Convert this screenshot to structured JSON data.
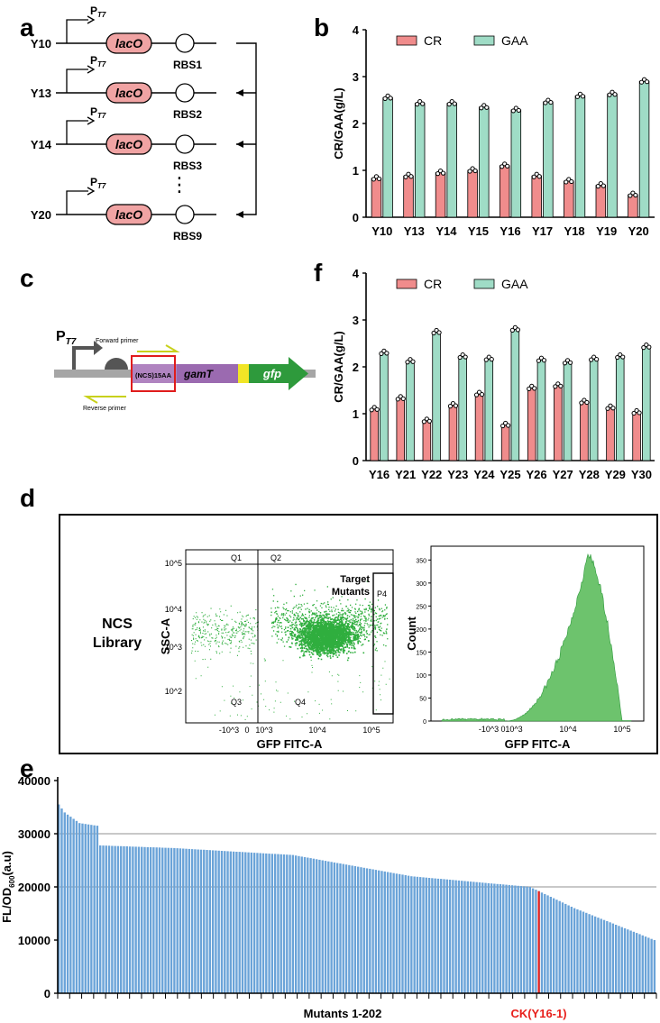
{
  "panels": {
    "a": {
      "letter": "a",
      "promoter": "P",
      "promoter_sub": "T7",
      "operator": "lacO",
      "strains": [
        "Y10",
        "Y13",
        "Y14",
        "Y20"
      ],
      "rbs": [
        "RBS1",
        "RBS2",
        "RBS3",
        "RBS9"
      ],
      "ellipsis": "⋮"
    },
    "c": {
      "letter": "c",
      "promoter": "P",
      "promoter_sub": "T7",
      "forward_primer": "Forward primer",
      "reverse_primer": "Reverse primer",
      "tag": "(NCS)15AA",
      "gene1": "gamT",
      "gene2": "gfp"
    },
    "d": {
      "letter": "d",
      "library_line1": "NCS",
      "library_line2": "Library",
      "scatter": {
        "quadrants": [
          "Q1",
          "Q2",
          "Q3",
          "Q4"
        ],
        "gate": "P4",
        "target_line1": "Target",
        "target_line2": "Mutants",
        "xlabel": "GFP FITC-A",
        "ylabel": "SSC-A",
        "yticks": [
          "10^5",
          "10^4",
          "10^3",
          "10^2"
        ],
        "xticks": [
          "-10^3",
          "0",
          "10^3",
          "10^4",
          "10^5"
        ]
      },
      "histogram": {
        "xlabel": "GFP FITC-A",
        "ylabel": "Count",
        "yticks": [
          "0",
          "50",
          "100",
          "150",
          "200",
          "250",
          "300",
          "350"
        ],
        "xticks": [
          "-10^3",
          "0",
          "10^3",
          "10^4",
          "10^5"
        ]
      }
    }
  },
  "chart_data": [
    {
      "id": "b",
      "letter": "b",
      "type": "bar",
      "categories": [
        "Y10",
        "Y13",
        "Y14",
        "Y15",
        "Y16",
        "Y17",
        "Y18",
        "Y19",
        "Y20"
      ],
      "series": [
        {
          "name": "CR",
          "color": "#f08c8c",
          "values": [
            0.83,
            0.88,
            0.95,
            1.0,
            1.1,
            0.88,
            0.77,
            0.68,
            0.48
          ]
        },
        {
          "name": "GAA",
          "color": "#9fdcc6",
          "values": [
            2.55,
            2.43,
            2.43,
            2.35,
            2.29,
            2.46,
            2.59,
            2.63,
            2.9
          ]
        }
      ],
      "ylabel": "CR/GAA(g/L)",
      "ylim": [
        0,
        4
      ],
      "yticks": [
        "0",
        "1",
        "2",
        "3",
        "4"
      ]
    },
    {
      "id": "f",
      "letter": "f",
      "type": "bar",
      "categories": [
        "Y16",
        "Y21",
        "Y22",
        "Y23",
        "Y24",
        "Y25",
        "Y26",
        "Y27",
        "Y28",
        "Y29",
        "Y30"
      ],
      "series": [
        {
          "name": "CR",
          "color": "#f08c8c",
          "values": [
            1.1,
            1.33,
            0.85,
            1.18,
            1.42,
            0.76,
            1.55,
            1.6,
            1.25,
            1.13,
            1.03
          ]
        },
        {
          "name": "GAA",
          "color": "#9fdcc6",
          "values": [
            2.3,
            2.12,
            2.74,
            2.22,
            2.17,
            2.8,
            2.15,
            2.1,
            2.17,
            2.22,
            2.43
          ]
        }
      ],
      "ylabel": "CR/GAA(g/L)",
      "ylim": [
        0,
        4
      ],
      "yticks": [
        "0",
        "1",
        "2",
        "3",
        "4"
      ]
    },
    {
      "id": "e",
      "letter": "e",
      "type": "bar",
      "n_bars": 202,
      "color": "#6aa3d8",
      "highlight_color": "#e8201c",
      "highlight_index": 162,
      "profile_rank": [
        1,
        3,
        8,
        14,
        15,
        40,
        80,
        120,
        160,
        175,
        202
      ],
      "profile_values": [
        35500,
        34000,
        32000,
        31500,
        27800,
        27300,
        26000,
        22000,
        20000,
        16000,
        10000
      ],
      "ylim": [
        0,
        40000
      ],
      "yticks": [
        "0",
        "10000",
        "20000",
        "30000",
        "40000"
      ],
      "gridlines": [
        30000,
        20000
      ],
      "xlabel": "Mutants 1-202",
      "ylabel_main": "FL/OD",
      "ylabel_sub": "600",
      "ylabel_unit": "(a.u)",
      "highlight_label": "CK(Y16-1)"
    }
  ]
}
